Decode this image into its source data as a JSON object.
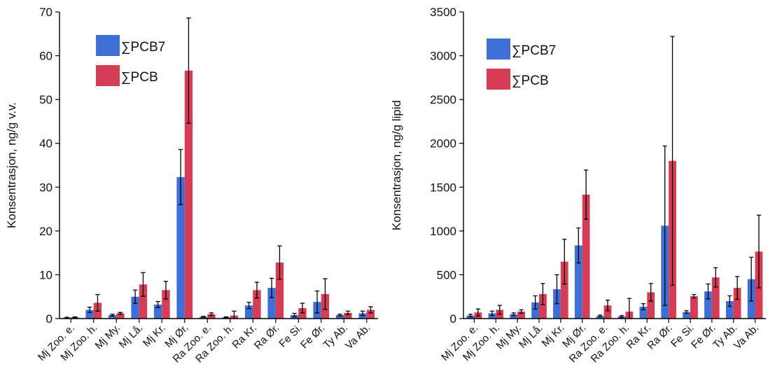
{
  "chart_data": [
    {
      "type": "bar",
      "ylabel": "Konsentrasjon, ng/g v.v.",
      "xlabel": "",
      "ylim": [
        0,
        70
      ],
      "yticks": [
        0,
        10,
        20,
        30,
        40,
        50,
        60,
        70
      ],
      "legend_position": "top-left",
      "categories": [
        "Mj Zoo. e.",
        "Mj Zoo. h.",
        "Mj My.",
        "Mj Lå.",
        "Mj Kr.",
        "Mj Ør.",
        "Ra Zoo. e.",
        "Ra Zoo. h.",
        "Ra Kr.",
        "Ra Ør.",
        "Fe Si.",
        "Fe Ør.",
        "Ty Ab.",
        "Va Ab."
      ],
      "series": [
        {
          "name": "∑PCB7",
          "color": "#3d6fd6",
          "values": [
            0.2,
            2.0,
            0.8,
            5.0,
            3.2,
            32.3,
            0.4,
            0.3,
            3.0,
            7.0,
            0.8,
            3.8,
            0.8,
            1.2
          ],
          "errors": [
            0.1,
            0.6,
            0.2,
            1.5,
            0.7,
            6.3,
            0.1,
            0.1,
            0.7,
            2.2,
            0.4,
            2.5,
            0.2,
            0.5
          ]
        },
        {
          "name": "∑PCB",
          "color": "#d63c54",
          "values": [
            0.3,
            3.6,
            1.2,
            7.8,
            6.5,
            56.6,
            1.0,
            0.7,
            6.5,
            12.8,
            2.4,
            5.6,
            1.3,
            2.0
          ],
          "errors": [
            0.1,
            1.9,
            0.2,
            2.7,
            2.0,
            12.0,
            0.3,
            1.0,
            1.8,
            3.8,
            1.1,
            3.5,
            0.4,
            0.7
          ]
        }
      ]
    },
    {
      "type": "bar",
      "ylabel": "Konsentrasjon, ng/g lipid",
      "xlabel": "",
      "ylim": [
        0,
        3500
      ],
      "yticks": [
        0,
        500,
        1000,
        1500,
        2000,
        2500,
        3000,
        3500
      ],
      "legend_position": "top-left",
      "categories": [
        "Mj Zoo. e.",
        "Mj Zoo. h.",
        "Mj My.",
        "Mj Lå.",
        "Mj Kr.",
        "Mj Ør.",
        "Ra Zoo. e.",
        "Ra Zoo. h.",
        "Ra Kr.",
        "Ra Ør.",
        "Fe Si.",
        "Fe Ør.",
        "Ty Ab.",
        "Va Ab."
      ],
      "series": [
        {
          "name": "∑PCB7",
          "color": "#3d6fd6",
          "values": [
            35,
            60,
            50,
            185,
            335,
            835,
            30,
            25,
            135,
            1060,
            75,
            310,
            200,
            450
          ],
          "errors": [
            15,
            25,
            15,
            75,
            165,
            200,
            10,
            10,
            35,
            910,
            15,
            85,
            60,
            250
          ]
        },
        {
          "name": "∑PCB",
          "color": "#d63c54",
          "values": [
            70,
            100,
            80,
            280,
            650,
            1415,
            150,
            80,
            300,
            1800,
            255,
            470,
            350,
            765
          ],
          "errors": [
            40,
            50,
            20,
            120,
            255,
            280,
            60,
            150,
            100,
            1420,
            20,
            110,
            130,
            415
          ]
        }
      ]
    }
  ]
}
